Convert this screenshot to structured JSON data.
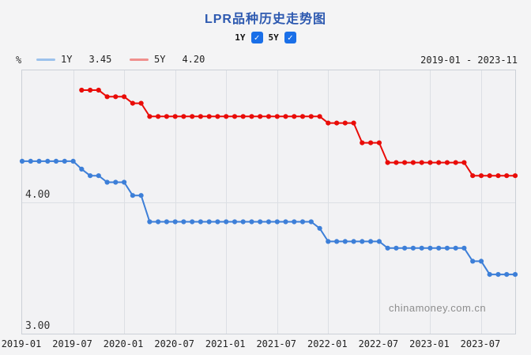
{
  "page": {
    "background": "#f4f4f5"
  },
  "header": {
    "title": "LPR品种历史走势图",
    "toggles": [
      {
        "label": "1Y",
        "checked": true
      },
      {
        "label": "5Y",
        "checked": true
      }
    ],
    "checkbox_color": "#1a6fe8",
    "check_glyph": "✓"
  },
  "legend": {
    "unit": "%",
    "items": [
      {
        "label": "1Y",
        "value": "3.45",
        "swatch_color": "#9cc2ec",
        "line_color": "#3d7fd8"
      },
      {
        "label": "5Y",
        "value": "4.20",
        "swatch_color": "#f0908e",
        "line_color": "#e90c08"
      }
    ],
    "date_range": "2019-01 - 2023-11"
  },
  "watermark": "chinamoney.com.cn",
  "chart_data": {
    "type": "line",
    "title": "LPR品种历史走势图",
    "ylabel": "%",
    "ylim": [
      3.0,
      5.0
    ],
    "x_start": "2019-01",
    "x_end": "2023-11",
    "x_total_months": 59,
    "grid": true,
    "legend_position": "top-left",
    "x_ticks": [
      {
        "i": 0,
        "label": "2019-01"
      },
      {
        "i": 6,
        "label": "2019-07"
      },
      {
        "i": 12,
        "label": "2020-01"
      },
      {
        "i": 18,
        "label": "2020-07"
      },
      {
        "i": 24,
        "label": "2021-01"
      },
      {
        "i": 30,
        "label": "2021-07"
      },
      {
        "i": 36,
        "label": "2022-01"
      },
      {
        "i": 42,
        "label": "2022-07"
      },
      {
        "i": 48,
        "label": "2023-01"
      },
      {
        "i": 54,
        "label": "2023-07"
      }
    ],
    "y_axis_labels": [
      {
        "value": 4.0,
        "text": "4.00"
      },
      {
        "value": 3.0,
        "text": "3.00"
      }
    ],
    "y_gridlines": [
      4.0
    ],
    "series": [
      {
        "name": "1Y",
        "color": "#3d7fd8",
        "start_month_index": 0,
        "values": [
          4.31,
          4.31,
          4.31,
          4.31,
          4.31,
          4.31,
          4.31,
          4.25,
          4.2,
          4.2,
          4.15,
          4.15,
          4.15,
          4.05,
          4.05,
          3.85,
          3.85,
          3.85,
          3.85,
          3.85,
          3.85,
          3.85,
          3.85,
          3.85,
          3.85,
          3.85,
          3.85,
          3.85,
          3.85,
          3.85,
          3.85,
          3.85,
          3.85,
          3.85,
          3.85,
          3.8,
          3.7,
          3.7,
          3.7,
          3.7,
          3.7,
          3.7,
          3.7,
          3.65,
          3.65,
          3.65,
          3.65,
          3.65,
          3.65,
          3.65,
          3.65,
          3.65,
          3.65,
          3.55,
          3.55,
          3.45,
          3.45,
          3.45,
          3.45
        ]
      },
      {
        "name": "5Y",
        "color": "#e90c08",
        "start_month_index": 7,
        "values": [
          4.85,
          4.85,
          4.85,
          4.8,
          4.8,
          4.8,
          4.75,
          4.75,
          4.65,
          4.65,
          4.65,
          4.65,
          4.65,
          4.65,
          4.65,
          4.65,
          4.65,
          4.65,
          4.65,
          4.65,
          4.65,
          4.65,
          4.65,
          4.65,
          4.65,
          4.65,
          4.65,
          4.65,
          4.65,
          4.6,
          4.6,
          4.6,
          4.6,
          4.45,
          4.45,
          4.45,
          4.3,
          4.3,
          4.3,
          4.3,
          4.3,
          4.3,
          4.3,
          4.3,
          4.3,
          4.3,
          4.2,
          4.2,
          4.2,
          4.2,
          4.2,
          4.2
        ]
      }
    ]
  }
}
